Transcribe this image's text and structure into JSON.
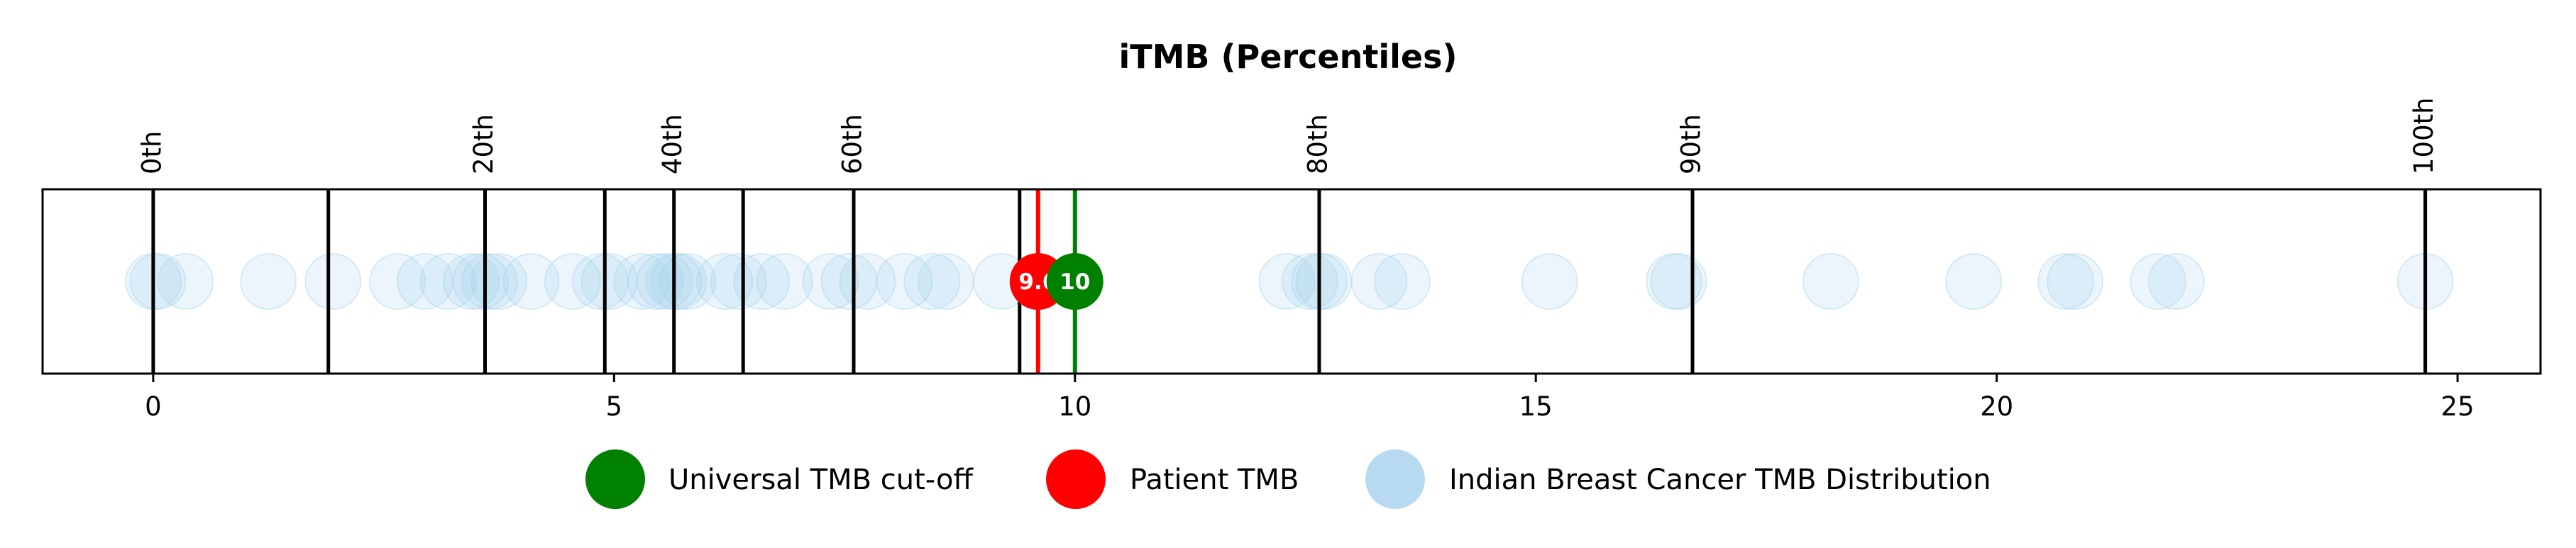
{
  "chart_data": {
    "type": "scatter",
    "title": "iTMB (Percentiles)",
    "xlabel": "",
    "ylabel": "",
    "xlim": [
      -1.2,
      25.9
    ],
    "x_ticks": [
      0,
      5,
      10,
      15,
      20,
      25
    ],
    "grid": false,
    "legend_placement": "bottom-center",
    "percentile_lines": [
      {
        "value": 0.0,
        "label": "0th"
      },
      {
        "value": 1.9,
        "label": ""
      },
      {
        "value": 3.6,
        "label": "20th"
      },
      {
        "value": 4.9,
        "label": ""
      },
      {
        "value": 5.65,
        "label": "40th"
      },
      {
        "value": 6.4,
        "label": ""
      },
      {
        "value": 7.6,
        "label": "60th"
      },
      {
        "value": 9.4,
        "label": ""
      },
      {
        "value": 12.65,
        "label": "80th"
      },
      {
        "value": 16.7,
        "label": "90th"
      },
      {
        "value": 24.65,
        "label": "100th"
      }
    ],
    "distribution": {
      "name": "Indian Breast Cancer TMB Distribution",
      "color": "#a6d1ec",
      "values": [
        0.0,
        0.05,
        0.35,
        1.25,
        1.95,
        2.65,
        2.95,
        3.2,
        3.45,
        3.55,
        3.65,
        3.75,
        4.1,
        4.55,
        4.85,
        4.95,
        5.3,
        5.45,
        5.55,
        5.65,
        5.7,
        5.8,
        6.2,
        6.35,
        6.6,
        6.85,
        7.35,
        7.55,
        7.75,
        8.15,
        8.45,
        8.6,
        9.2,
        12.3,
        12.55,
        12.65,
        12.7,
        13.3,
        13.55,
        15.15,
        16.5,
        16.55,
        18.2,
        19.75,
        20.75,
        20.85,
        21.75,
        21.95,
        24.65
      ]
    },
    "patient": {
      "name": "Patient TMB",
      "value": 9.6,
      "label": "9.6",
      "color": "#ff0000"
    },
    "cutoff": {
      "name": "Universal TMB cut-off",
      "value": 10,
      "label": "10",
      "color": "#008000"
    },
    "legend": [
      "Universal TMB cut-off",
      "Patient TMB",
      "Indian Breast Cancer TMB Distribution"
    ]
  }
}
